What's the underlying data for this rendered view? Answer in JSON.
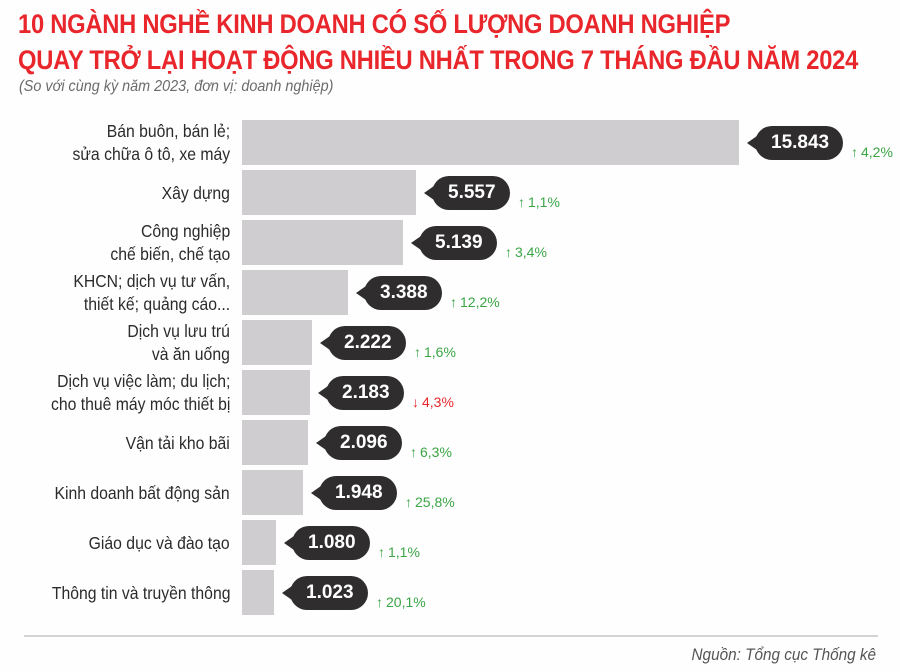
{
  "title_line1": "10 NGÀNH NGHỀ KINH DOANH CÓ SỐ LƯỢNG DOANH NGHIỆP",
  "title_line2": "QUAY TRỞ LẠI HOẠT ĐỘNG NHIỀU NHẤT TRONG 7 THÁNG ĐẦU NĂM 2024",
  "subtitle": "(So với cùng kỳ năm 2023, đơn vị: doanh nghiệp)",
  "source": "Nguồn: Tổng cục Thống kê",
  "colors": {
    "title": "#e8262b",
    "bar": "#d0cdd1",
    "bubble": "#2f2d2e",
    "up": "#3aa545",
    "down": "#e8262b"
  },
  "rows": [
    {
      "label1": "Bán buôn, bán lẻ;",
      "label2": "sửa chữa ô tô, xe máy",
      "value_text": "15.843",
      "change_text": "4,2%",
      "direction": "up",
      "arrow": "↑"
    },
    {
      "label1": "Xây dựng",
      "label2": "",
      "value_text": "5.557",
      "change_text": "1,1%",
      "direction": "up",
      "arrow": "↑"
    },
    {
      "label1": "Công nghiệp",
      "label2": "chế biến, chế tạo",
      "value_text": "5.139",
      "change_text": "3,4%",
      "direction": "up",
      "arrow": "↑"
    },
    {
      "label1": "KHCN; dịch vụ tư vấn,",
      "label2": "thiết kế; quảng cáo...",
      "value_text": "3.388",
      "change_text": "12,2%",
      "direction": "up",
      "arrow": "↑"
    },
    {
      "label1": "Dịch vụ lưu trú",
      "label2": "và ăn uống",
      "value_text": "2.222",
      "change_text": "1,6%",
      "direction": "up",
      "arrow": "↑"
    },
    {
      "label1": "Dịch vụ việc làm; du lịch;",
      "label2": "cho thuê máy móc thiết bị",
      "value_text": "2.183",
      "change_text": "4,3%",
      "direction": "down",
      "arrow": "↓"
    },
    {
      "label1": "Vận tải kho bãi",
      "label2": "",
      "value_text": "2.096",
      "change_text": "6,3%",
      "direction": "up",
      "arrow": "↑"
    },
    {
      "label1": "Kinh doanh bất động sản",
      "label2": "",
      "value_text": "1.948",
      "change_text": "25,8%",
      "direction": "up",
      "arrow": "↑"
    },
    {
      "label1": "Giáo dục và đào tạo",
      "label2": "",
      "value_text": "1.080",
      "change_text": "1,1%",
      "direction": "up",
      "arrow": "↑"
    },
    {
      "label1": "Thông tin và truyền thông",
      "label2": "",
      "value_text": "1.023",
      "change_text": "20,1%",
      "direction": "up",
      "arrow": "↑"
    }
  ],
  "chart_data": {
    "type": "bar",
    "orientation": "horizontal",
    "title": "10 NGÀNH NGHỀ KINH DOANH CÓ SỐ LƯỢNG DOANH NGHIỆP QUAY TRỞ LẠI HOẠT ĐỘNG NHIỀU NHẤT TRONG 7 THÁNG ĐẦU NĂM 2024",
    "subtitle": "(So với cùng kỳ năm 2023, đơn vị: doanh nghiệp)",
    "xlabel": "",
    "ylabel": "",
    "unit": "doanh nghiệp",
    "grid": false,
    "legend": null,
    "categories": [
      "Bán buôn, bán lẻ; sửa chữa ô tô, xe máy",
      "Xây dựng",
      "Công nghiệp chế biến, chế tạo",
      "KHCN; dịch vụ tư vấn, thiết kế; quảng cáo...",
      "Dịch vụ lưu trú và ăn uống",
      "Dịch vụ việc làm; du lịch; cho thuê máy móc thiết bị",
      "Vận tải kho bãi",
      "Kinh doanh bất động sản",
      "Giáo dục và đào tạo",
      "Thông tin và truyền thông"
    ],
    "values": [
      15843,
      5557,
      5139,
      3388,
      2222,
      2183,
      2096,
      1948,
      1080,
      1023
    ],
    "change_vs_2023_percent": [
      4.2,
      1.1,
      3.4,
      12.2,
      1.6,
      -4.3,
      6.3,
      25.8,
      1.1,
      20.1
    ],
    "xlim": [
      0,
      15843
    ],
    "source": "Nguồn: Tổng cục Thống kê"
  }
}
